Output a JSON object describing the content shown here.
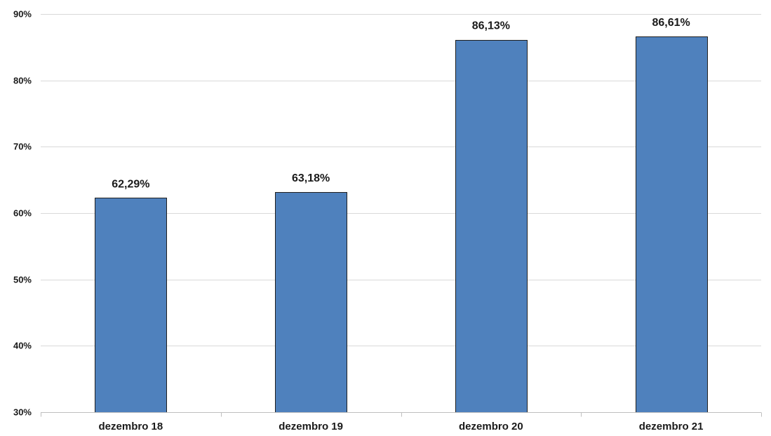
{
  "chart_data": {
    "type": "bar",
    "categories": [
      "dezembro 18",
      "dezembro 19",
      "dezembro 20",
      "dezembro 21"
    ],
    "values": [
      62.29,
      63.18,
      86.13,
      86.61
    ],
    "data_labels": [
      "62,29%",
      "63,18%",
      "86,13%",
      "86,61%"
    ],
    "ylim": [
      30,
      90
    ],
    "y_ticks": [
      30,
      40,
      50,
      60,
      70,
      80,
      90
    ],
    "y_tick_labels": [
      "30%",
      "40%",
      "50%",
      "60%",
      "70%",
      "80%",
      "90%"
    ],
    "title": "",
    "xlabel": "",
    "ylabel": "",
    "grid": true,
    "legend": "none",
    "bar_color": "#4f81bd",
    "bar_edge_color": "#1f1f1f"
  }
}
